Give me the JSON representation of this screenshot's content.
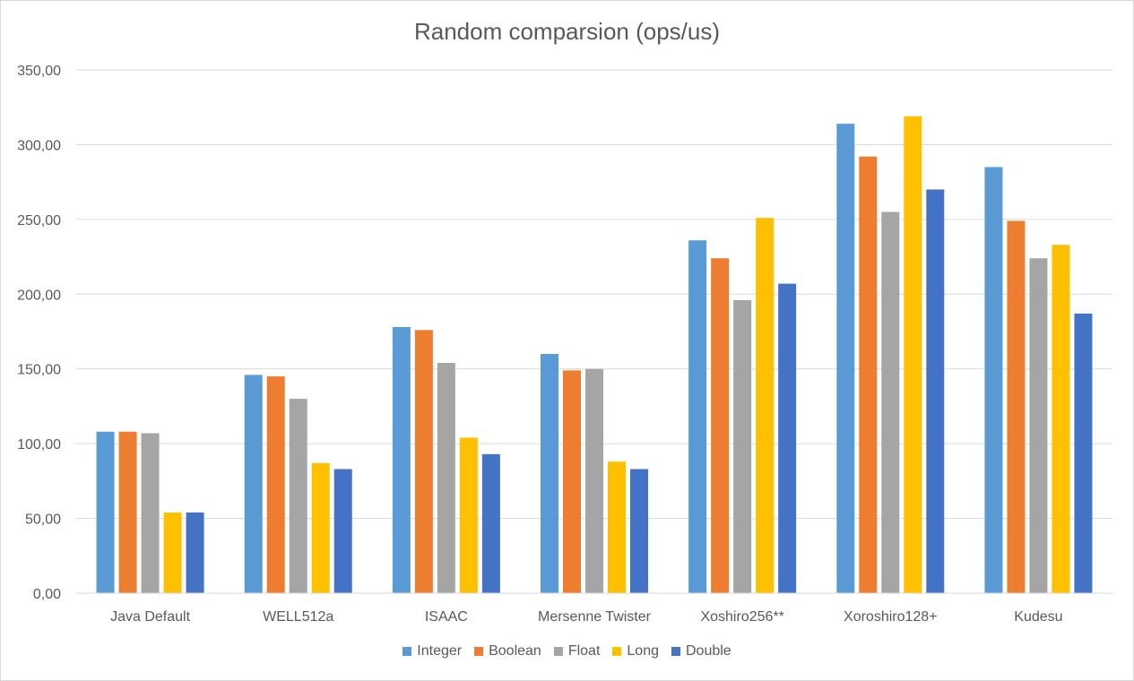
{
  "chart_data": {
    "type": "bar",
    "title": "Random comparsion (ops/us)",
    "xlabel": "",
    "ylabel": "",
    "ylim": [
      0,
      350
    ],
    "yticks": [
      "0,00",
      "50,00",
      "100,00",
      "150,00",
      "200,00",
      "250,00",
      "300,00",
      "350,00"
    ],
    "grid": true,
    "legend_position": "bottom",
    "categories": [
      "Java Default",
      "WELL512a",
      "ISAAC",
      "Mersenne Twister",
      "Xoshiro256**",
      "Xoroshiro128+",
      "Kudesu"
    ],
    "series": [
      {
        "name": "Integer",
        "color": "#5b9bd5",
        "values": [
          108,
          146,
          178,
          160,
          236,
          314,
          285
        ]
      },
      {
        "name": "Boolean",
        "color": "#ed7d31",
        "values": [
          108,
          145,
          176,
          149,
          224,
          292,
          249
        ]
      },
      {
        "name": "Float",
        "color": "#a5a5a5",
        "values": [
          107,
          130,
          154,
          150,
          196,
          255,
          224
        ]
      },
      {
        "name": "Long",
        "color": "#ffc000",
        "values": [
          54,
          87,
          104,
          88,
          251,
          319,
          233
        ]
      },
      {
        "name": "Double",
        "color": "#4472c4",
        "values": [
          54,
          83,
          93,
          83,
          207,
          270,
          187
        ]
      }
    ]
  }
}
